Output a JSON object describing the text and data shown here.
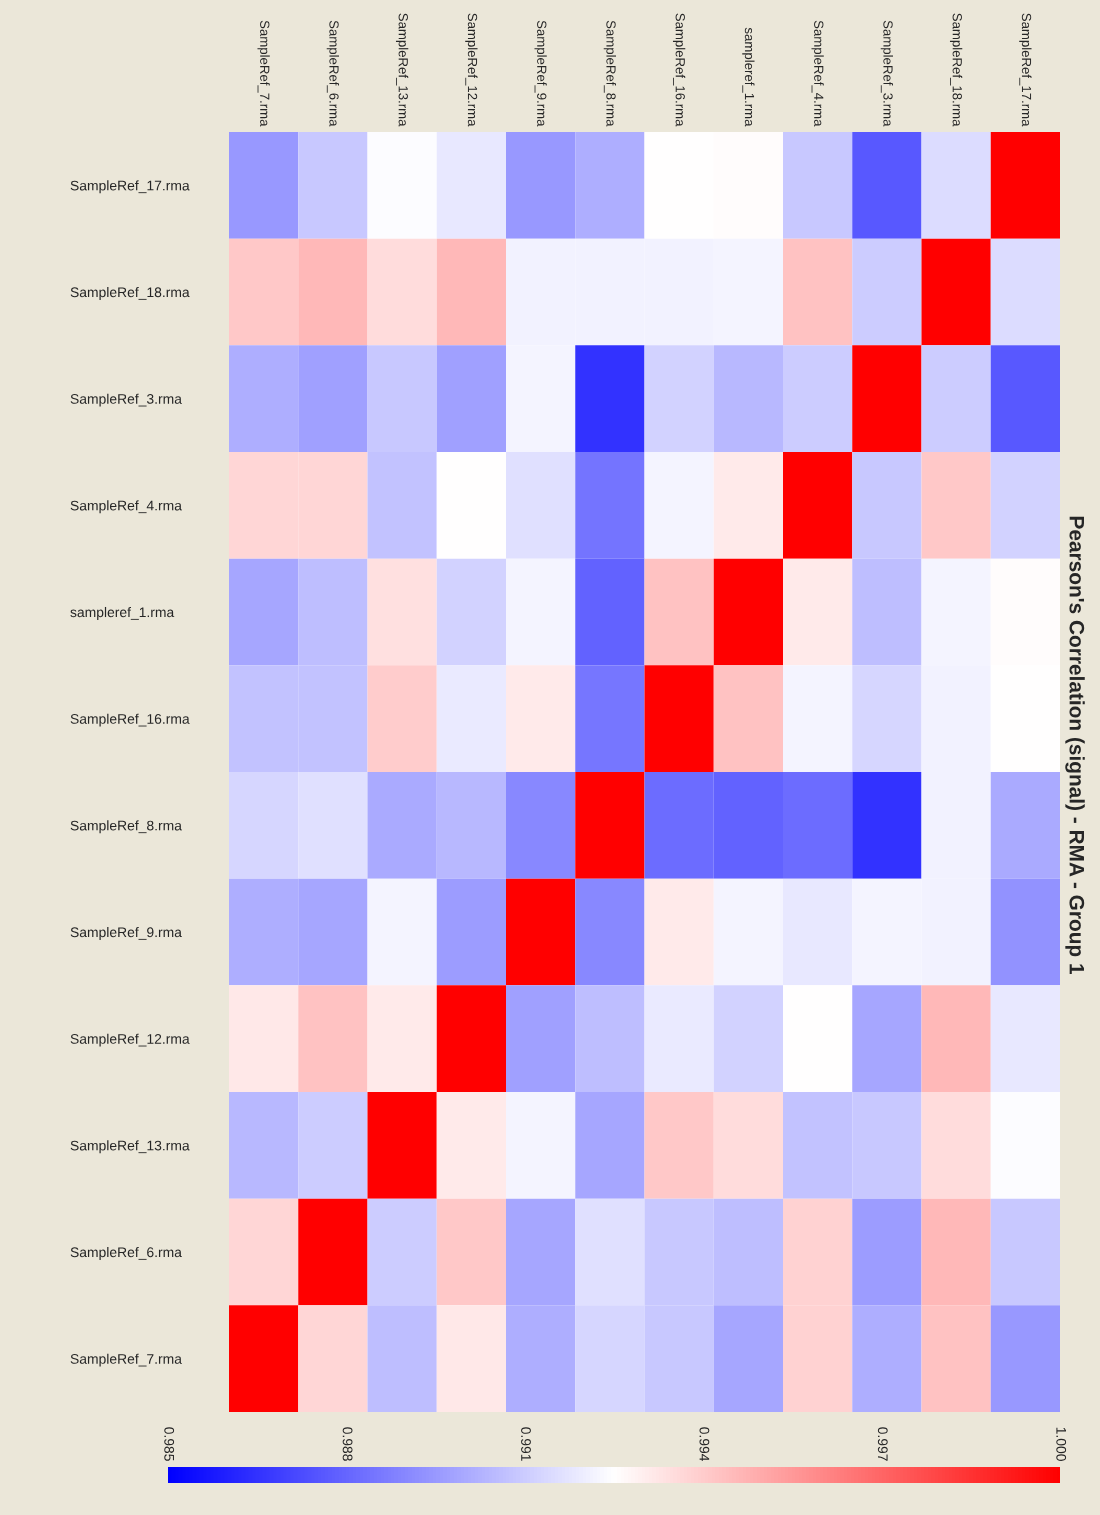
{
  "chart_data": {
    "type": "heatmap",
    "title": "Pearson's Correlation (signal) - RMA - Group 1",
    "categories": [
      "SampleRef_7.rma",
      "SampleRef_6.rma",
      "SampleRef_13.rma",
      "SampleRef_12.rma",
      "SampleRef_9.rma",
      "SampleRef_8.rma",
      "SampleRef_16.rma",
      "sampleref_1.rma",
      "SampleRef_4.rma",
      "SampleRef_3.rma",
      "SampleRef_18.rma",
      "SampleRef_17.rma"
    ],
    "y_categories": [
      "SampleRef_17.rma",
      "SampleRef_18.rma",
      "SampleRef_3.rma",
      "SampleRef_4.rma",
      "sampleref_1.rma",
      "SampleRef_16.rma",
      "SampleRef_8.rma",
      "SampleRef_9.rma",
      "SampleRef_12.rma",
      "SampleRef_13.rma",
      "SampleRef_6.rma",
      "SampleRef_7.rma"
    ],
    "cells": [
      [
        0.9895,
        0.9909,
        0.9924,
        0.9918,
        0.9895,
        0.9901,
        0.9925,
        0.9926,
        0.9909,
        0.9876,
        0.9915,
        1.0
      ],
      [
        0.9941,
        0.9946,
        0.9935,
        0.9946,
        0.9921,
        0.9921,
        0.9921,
        0.9922,
        0.9943,
        0.991,
        1.0,
        0.9915
      ],
      [
        0.9901,
        0.9897,
        0.9909,
        0.9897,
        0.9922,
        0.9865,
        0.9912,
        0.9904,
        0.991,
        1.0,
        0.991,
        0.9876
      ],
      [
        0.9937,
        0.9937,
        0.9907,
        0.9925,
        0.9916,
        0.9884,
        0.9922,
        0.9931,
        1.0,
        0.9909,
        0.9941,
        0.9912
      ],
      [
        0.9899,
        0.9906,
        0.9934,
        0.9912,
        0.9922,
        0.9879,
        0.9943,
        1.0,
        0.9931,
        0.9906,
        0.9922,
        0.9926
      ],
      [
        0.9907,
        0.9907,
        0.994,
        0.9919,
        0.9931,
        0.9885,
        1.0,
        0.9943,
        0.9922,
        0.9913,
        0.9921,
        0.9925
      ],
      [
        0.9913,
        0.9916,
        0.99,
        0.9904,
        0.989,
        1.0,
        0.9882,
        0.9879,
        0.9882,
        0.9865,
        0.9921,
        0.99
      ],
      [
        0.9901,
        0.9899,
        0.9922,
        0.9896,
        1.0,
        0.989,
        0.9931,
        0.9922,
        0.9918,
        0.9922,
        0.9921,
        0.9893
      ],
      [
        0.9932,
        0.9943,
        0.9931,
        1.0,
        0.9897,
        0.9906,
        0.9919,
        0.9912,
        0.9925,
        0.9899,
        0.9946,
        0.9918
      ],
      [
        0.9904,
        0.991,
        1.0,
        0.9931,
        0.9922,
        0.9899,
        0.9941,
        0.9935,
        0.9907,
        0.9909,
        0.9935,
        0.9924
      ],
      [
        0.9937,
        1.0,
        0.991,
        0.9941,
        0.9899,
        0.9916,
        0.9909,
        0.9906,
        0.9938,
        0.9896,
        0.9946,
        0.9909
      ],
      [
        1.0,
        0.9937,
        0.9906,
        0.9932,
        0.9901,
        0.9913,
        0.9909,
        0.9899,
        0.9938,
        0.9901,
        0.9943,
        0.9895
      ]
    ],
    "clim": [
      0.985,
      1.0
    ],
    "cticks": [
      {
        "value": 0.985,
        "label": "0.985"
      },
      {
        "value": 0.988,
        "label": "0.988"
      },
      {
        "value": 0.991,
        "label": "0.991"
      },
      {
        "value": 0.994,
        "label": "0.994"
      },
      {
        "value": 0.997,
        "label": "0.997"
      },
      {
        "value": 1.0,
        "label": "1.000"
      }
    ]
  }
}
